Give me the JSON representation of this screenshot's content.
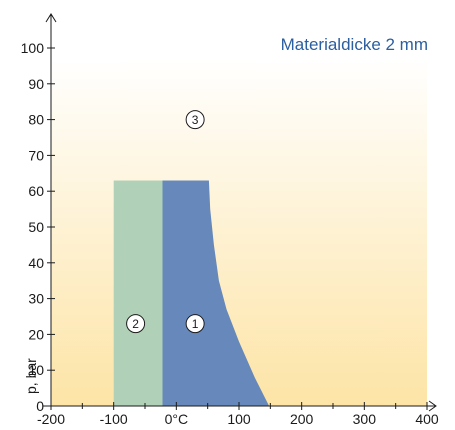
{
  "chart_data": {
    "type": "area",
    "title": "Materialdicke 2 mm",
    "ylabel": "p, bar",
    "xlabel": "",
    "xlim": [
      -200,
      400
    ],
    "ylim": [
      0,
      100
    ],
    "x_ticks": [
      {
        "value": -200,
        "label": "-200"
      },
      {
        "value": -100,
        "label": "-100"
      },
      {
        "value": 0,
        "label": "0°C"
      },
      {
        "value": 100,
        "label": "100"
      },
      {
        "value": 200,
        "label": "200"
      },
      {
        "value": 300,
        "label": "300"
      },
      {
        "value": 400,
        "label": "400"
      }
    ],
    "y_ticks": [
      0,
      10,
      20,
      30,
      40,
      50,
      60,
      70,
      80,
      90,
      100
    ],
    "grid": false,
    "background_gradient": [
      "#fde4a6",
      "#ffffff"
    ],
    "regions": [
      {
        "name": "2",
        "color": "#b0d1b7",
        "polygon": [
          [
            -100,
            0
          ],
          [
            -100,
            63
          ],
          [
            -22,
            63
          ],
          [
            -22,
            0
          ]
        ],
        "label_at": [
          -65,
          23
        ]
      },
      {
        "name": "1",
        "color": "#6688bb",
        "polygon": [
          [
            -22,
            0
          ],
          [
            -22,
            63
          ],
          [
            52,
            63
          ],
          [
            54,
            55
          ],
          [
            60,
            45
          ],
          [
            68,
            35
          ],
          [
            80,
            27
          ],
          [
            100,
            18
          ],
          [
            125,
            8
          ],
          [
            148,
            0
          ]
        ],
        "label_at": [
          30,
          23
        ]
      },
      {
        "name": "3",
        "color": "none",
        "polygon": [],
        "label_at": [
          30,
          80
        ]
      }
    ]
  }
}
